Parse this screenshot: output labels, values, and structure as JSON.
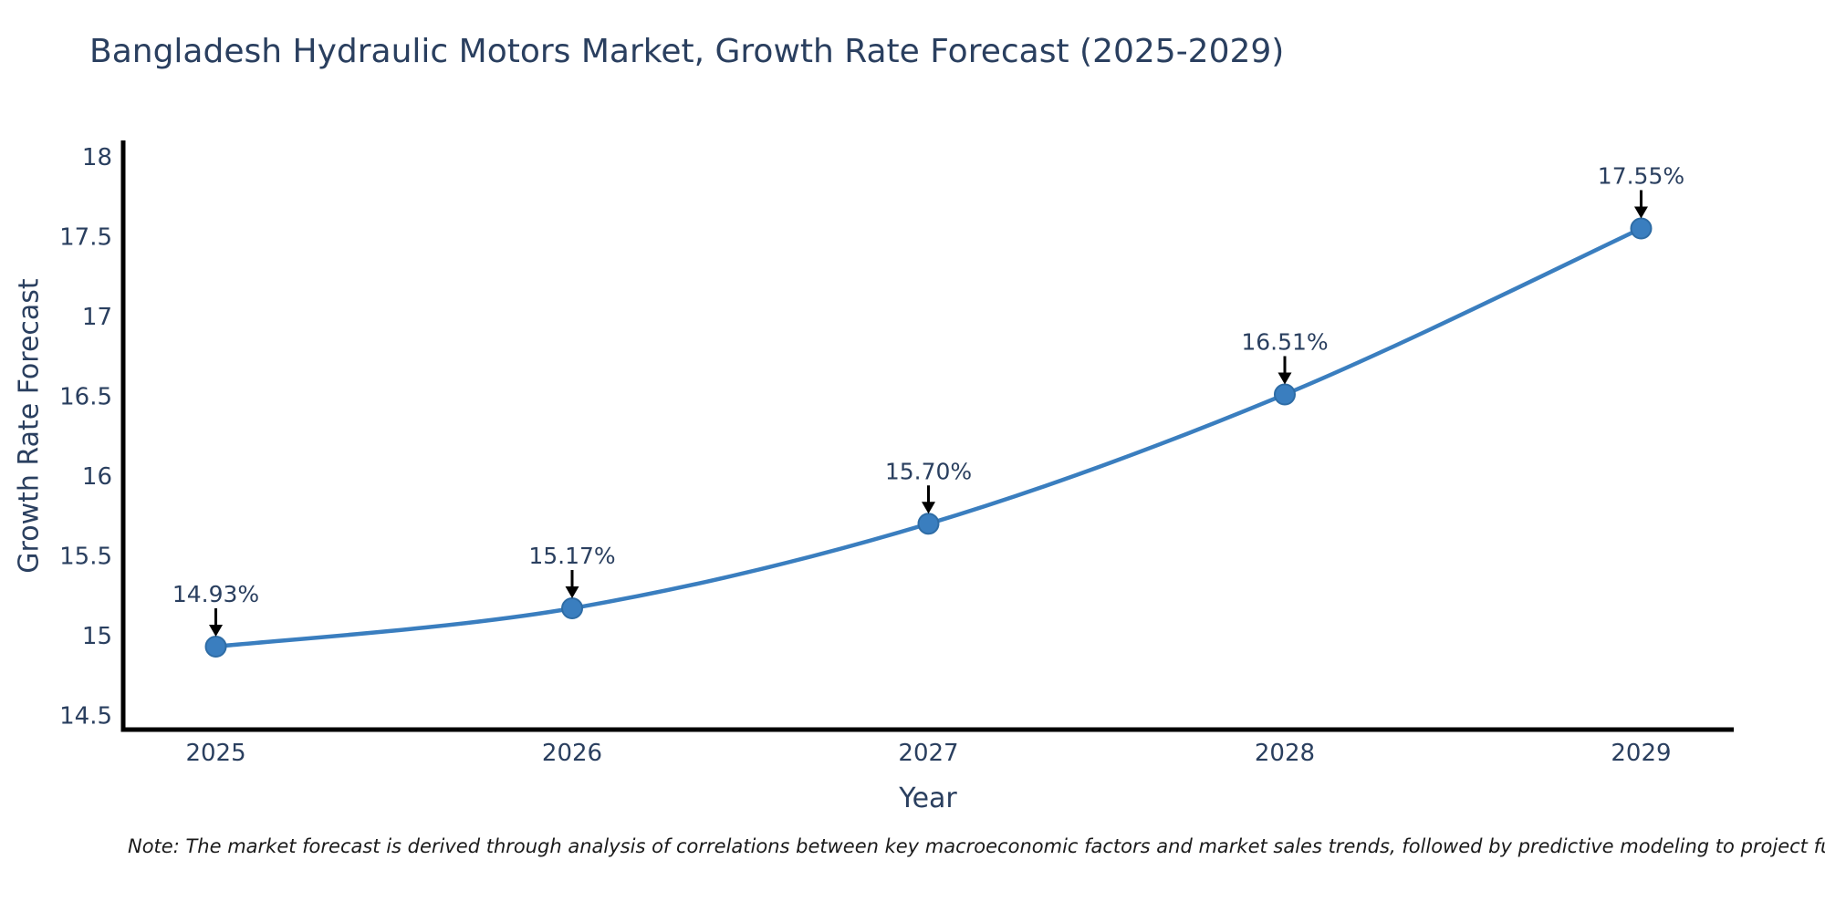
{
  "title": "Bangladesh Hydraulic Motors Market, Growth Rate Forecast (2025-2029)",
  "note": "Note: The market forecast is derived through analysis of correlations between key macroeconomic factors and market sales trends, followed by predictive modeling to project future sales.",
  "colors": {
    "line": "#3a7ebf",
    "marker_fill": "#3a7ebf",
    "marker_edge": "#2e6ca5",
    "axis": "#000000",
    "text": "#2a3f5f",
    "annotation_text": "#2a3f5f",
    "arrow": "#000000",
    "background": "#ffffff"
  },
  "chart_data": {
    "type": "line",
    "title": "Bangladesh Hydraulic Motors Market, Growth Rate Forecast (2025-2029)",
    "xlabel": "Year",
    "ylabel": "Growth Rate Forecast",
    "x": [
      2025,
      2026,
      2027,
      2028,
      2029
    ],
    "y": [
      14.93,
      15.17,
      15.7,
      16.51,
      17.55
    ],
    "point_labels": [
      "14.93%",
      "15.17%",
      "15.70%",
      "16.51%",
      "17.55%"
    ],
    "series_name": "Growth Rate Forecast",
    "xlim": [
      2024.74,
      2029.26
    ],
    "ylim": [
      14.41,
      18.09
    ],
    "xticks": [
      2025,
      2026,
      2027,
      2028,
      2029
    ],
    "xtick_labels": [
      "2025",
      "2026",
      "2027",
      "2028",
      "2029"
    ],
    "yticks": [
      14.5,
      15,
      15.5,
      16,
      16.5,
      17,
      17.5,
      18
    ],
    "ytick_labels": [
      "14.5",
      "15",
      "15.5",
      "16",
      "16.5",
      "17",
      "17.5",
      "18"
    ],
    "grid": false,
    "legend_position": "none",
    "annotations_have_arrows": true
  }
}
